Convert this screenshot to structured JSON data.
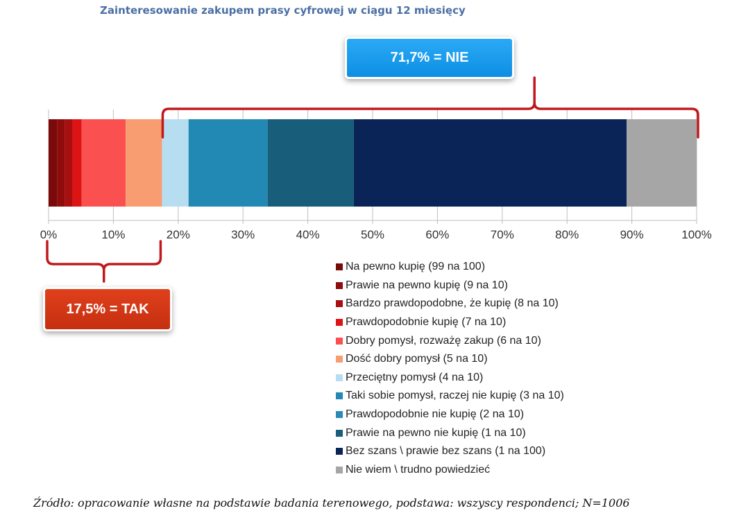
{
  "chart_data": {
    "type": "bar",
    "orientation": "horizontal-stacked-100",
    "title": "Zainteresowanie zakupem prasy cyfrowej w ciągu 12 miesięcy",
    "xlim": [
      0,
      100
    ],
    "x_ticks": [
      "0%",
      "10%",
      "20%",
      "30%",
      "40%",
      "50%",
      "60%",
      "70%",
      "80%",
      "90%",
      "100%"
    ],
    "series": [
      {
        "name": "Na pewno kupię (99 na 100)",
        "value": 1.3,
        "color": "#7a0a0a"
      },
      {
        "name": "Prawie na pewno kupię (9 na 10)",
        "value": 1.2,
        "color": "#8e0c0c"
      },
      {
        "name": "Bardzo prawdopodobne, że kupię (8 na 10)",
        "value": 1.2,
        "color": "#a90f0f"
      },
      {
        "name": "Prawdopodobnie kupię (7 na 10)",
        "value": 1.4,
        "color": "#de1414"
      },
      {
        "name": "Dobry pomysł, rozważę zakup (6 na 10)",
        "value": 6.8,
        "color": "#fb5050"
      },
      {
        "name": "Dość dobry pomysł (5 na 10)",
        "value": 5.6,
        "color": "#f79d71"
      },
      {
        "name": "Przeciętny pomysł (4 na 10)",
        "value": 4.1,
        "color": "#b7def0"
      },
      {
        "name": "Taki sobie pomysł, raczej nie kupię (3 na 10)",
        "value": 12.2,
        "color": "#2288b4"
      },
      {
        "name": "Prawdopodobnie nie kupię (2 na 10)",
        "value": 0.0,
        "color": "#2a8bb8"
      },
      {
        "name": "Prawie na pewno nie kupię (1 na 10)",
        "value": 13.3,
        "color": "#185e7a"
      },
      {
        "name": "Bez szans \\ prawie bez szans (1 na 100)",
        "value": 42.1,
        "color": "#0b2458"
      },
      {
        "name": "Nie wiem \\ trudno powiedzieć",
        "value": 10.8,
        "color": "#a6a6a6"
      }
    ],
    "annotations": {
      "nie": "71,7% = NIE",
      "tak": "17,5% = TAK"
    },
    "brackets": {
      "tak_range": [
        0,
        17.5
      ],
      "nie_range": [
        17.5,
        100
      ]
    },
    "colors": {
      "bracket": "#c0191c",
      "axis": "#bfbfbf",
      "tick_label": "#333333"
    }
  },
  "source": "Źródło: opracowanie własne na podstawie badania terenowego, podstawa: wszyscy respondenci; N=1006"
}
